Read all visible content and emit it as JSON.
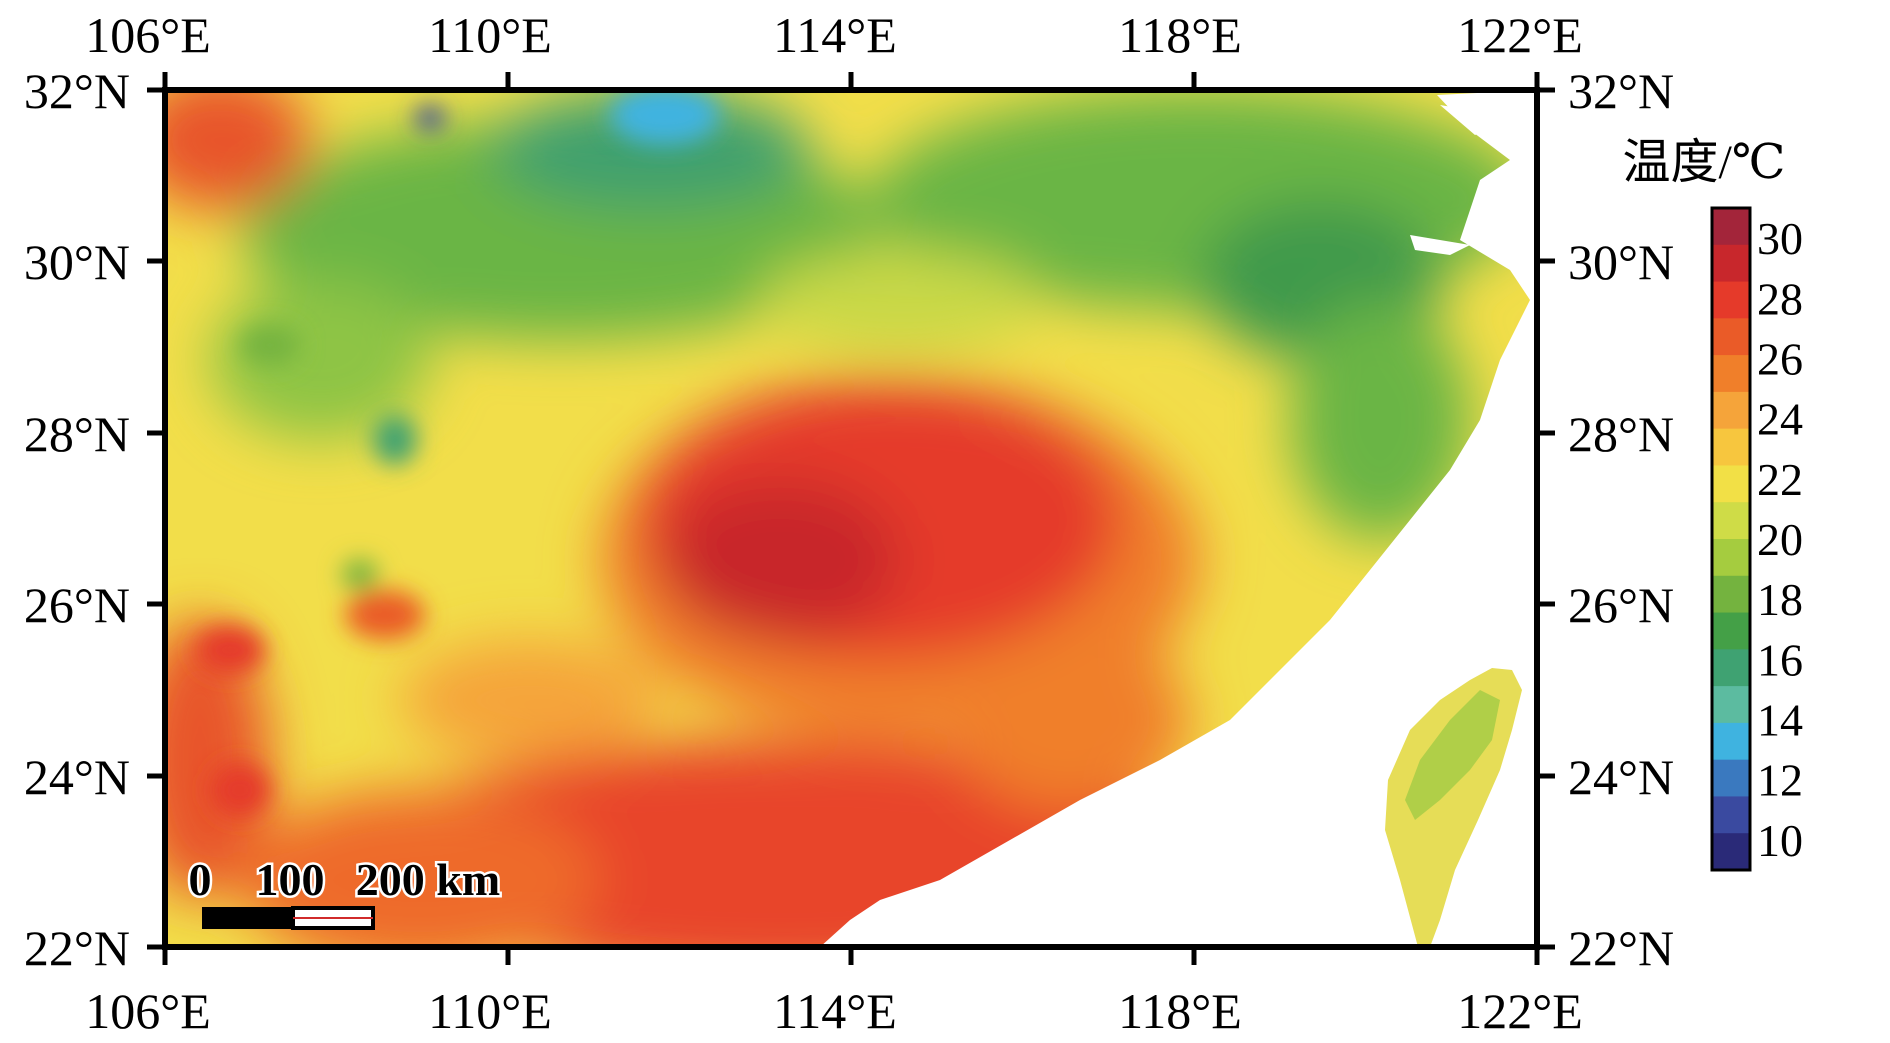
{
  "map": {
    "x_ticks": [
      "106°E",
      "110°E",
      "114°E",
      "118°E",
      "122°E"
    ],
    "y_ticks": [
      "32°N",
      "30°N",
      "28°N",
      "26°N",
      "24°N",
      "22°N"
    ],
    "lon_range": [
      106,
      122
    ],
    "lat_range": [
      22,
      32
    ],
    "legend": {
      "title": "温度/℃",
      "ticks": [
        "30",
        "28",
        "26",
        "24",
        "22",
        "20",
        "18",
        "16",
        "14",
        "12",
        "10"
      ],
      "colors": [
        "#a3253a",
        "#c8272c",
        "#e53a2a",
        "#ea5b28",
        "#f07f2a",
        "#f5a43a",
        "#f7c63e",
        "#f2e046",
        "#cfdc47",
        "#a5cc3f",
        "#74b33f",
        "#44a047",
        "#3fa272",
        "#5cbba0",
        "#3fb3e0",
        "#3a79bf",
        "#3a4aa0",
        "#2a2a78"
      ],
      "range": [
        9,
        31
      ]
    },
    "scale_bar": {
      "labels": [
        "0",
        "100",
        "200 km"
      ]
    }
  }
}
